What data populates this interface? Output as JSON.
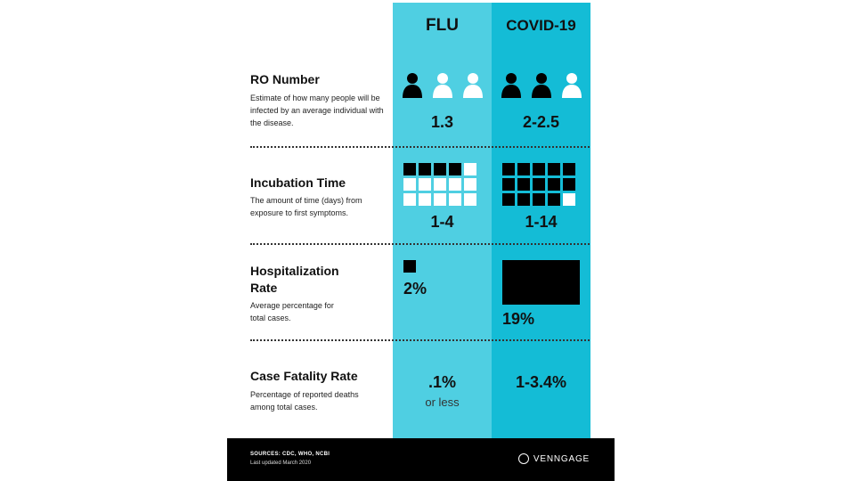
{
  "columns": {
    "flu": {
      "header": "FLU"
    },
    "covid": {
      "header": "COVID-19"
    }
  },
  "rows": {
    "r0": {
      "title": "RO Number",
      "description": "Estimate of how many people will be infected by an average individual with the disease.",
      "flu_value": "1.3",
      "covid_value": "2-2.5",
      "flu_people_filled": 1,
      "covid_people_filled": 2,
      "people_total": 3
    },
    "incubation": {
      "title": "Incubation Time",
      "description": "The amount of time (days) from exposure to first symptoms.",
      "flu_value": "1-4",
      "covid_value": "1-14",
      "flu_days_filled": 4,
      "covid_days_filled": 14,
      "days_total": 15
    },
    "hospitalization": {
      "title": "Hospitalization Rate",
      "description": "Average percentage for total cases.",
      "flu_value": "2%",
      "covid_value": "19%"
    },
    "fatality": {
      "title": "Case Fatality Rate",
      "description": "Percentage of reported deaths among total cases.",
      "flu_value": ".1%",
      "flu_note": "or less",
      "covid_value": "1-3.4%"
    }
  },
  "footer": {
    "sources": "SOURCES: CDC, WHO, NCBI",
    "updated": "Last updated March 2020",
    "brand": "VENNGAGE"
  },
  "colors": {
    "flu_column": "#4fcfe2",
    "covid_column": "#14bcd6",
    "filled": "#000000",
    "empty": "#ffffff"
  }
}
